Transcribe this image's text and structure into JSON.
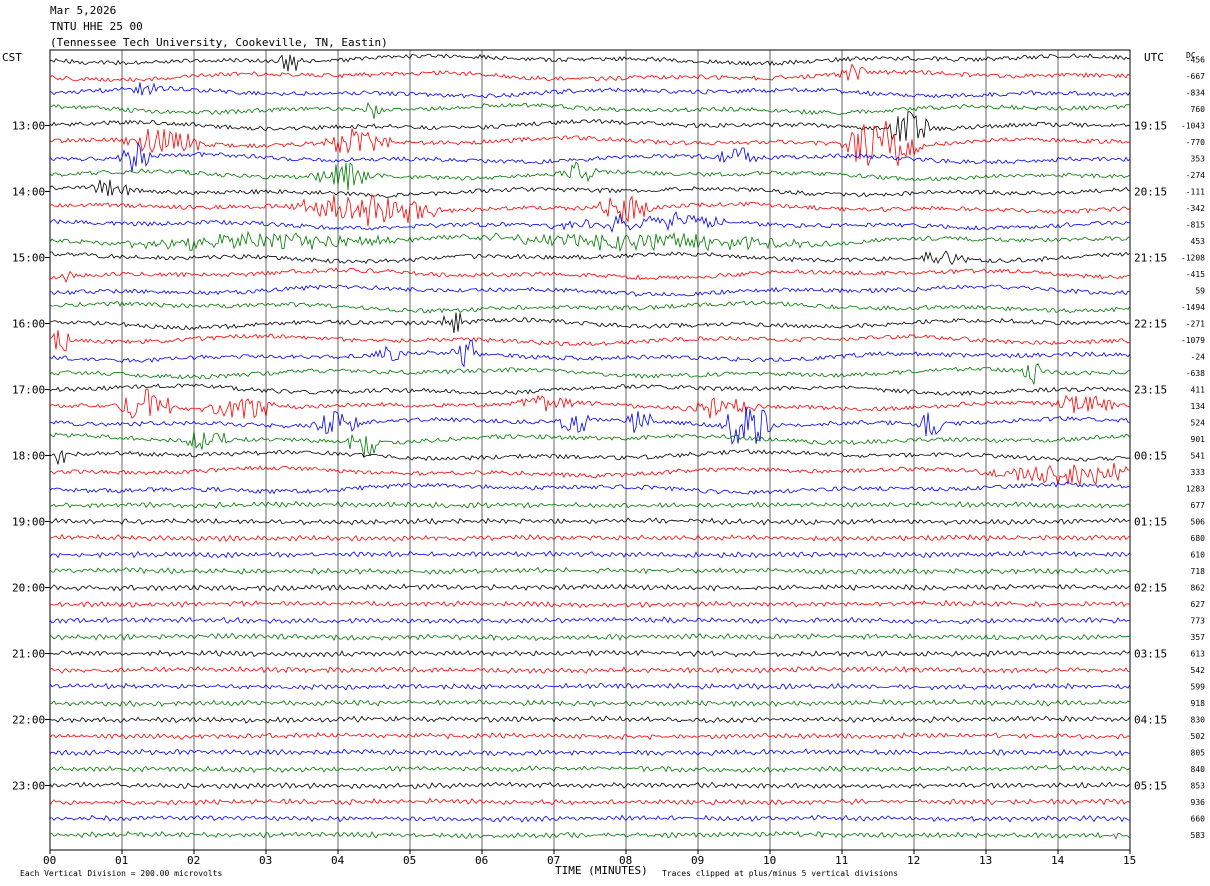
{
  "header": {
    "date": "Mar 5,2026",
    "station": "TNTU HHE 25 00",
    "location": "(Tennessee Tech University, Cookeville, TN, Eastin)"
  },
  "chart_data": {
    "type": "line",
    "left_zone": "CST",
    "right_zone": "UTC",
    "dc_label": "DC",
    "xlabel": "TIME (MINUTES)",
    "x_ticks": [
      "00",
      "01",
      "02",
      "03",
      "04",
      "05",
      "06",
      "07",
      "08",
      "09",
      "10",
      "11",
      "12",
      "13",
      "14",
      "15"
    ],
    "xlim": [
      0,
      15
    ],
    "hour_labels_left": [
      "13:00",
      "14:00",
      "15:00",
      "16:00",
      "17:00",
      "18:00",
      "19:00",
      "20:00",
      "21:00",
      "22:00",
      "23:00"
    ],
    "hour_labels_right": [
      "19:15",
      "20:15",
      "21:15",
      "22:15",
      "23:15",
      "00:15",
      "01:15",
      "02:15",
      "03:15",
      "04:15",
      "05:15"
    ],
    "trace_colors": [
      "#000000",
      "#ff0000",
      "#0000ff",
      "#007a00"
    ],
    "dc_offsets": [
      -456,
      -667,
      -834,
      760,
      -1043,
      -770,
      353,
      -274,
      -111,
      -342,
      -815,
      453,
      -1208,
      -415,
      59,
      -1494,
      -271,
      -1079,
      -24,
      -638,
      411,
      134,
      524,
      901,
      541,
      333,
      1283,
      677,
      506,
      680,
      610,
      718,
      862,
      627,
      773,
      357,
      613,
      542,
      599,
      918,
      830,
      502,
      805,
      840,
      853,
      936,
      660,
      583
    ],
    "scale_note": "Each Vertical Division =  200.00 microvolts",
    "clip_note": "Traces clipped at plus/minus 5 vertical divisions"
  }
}
